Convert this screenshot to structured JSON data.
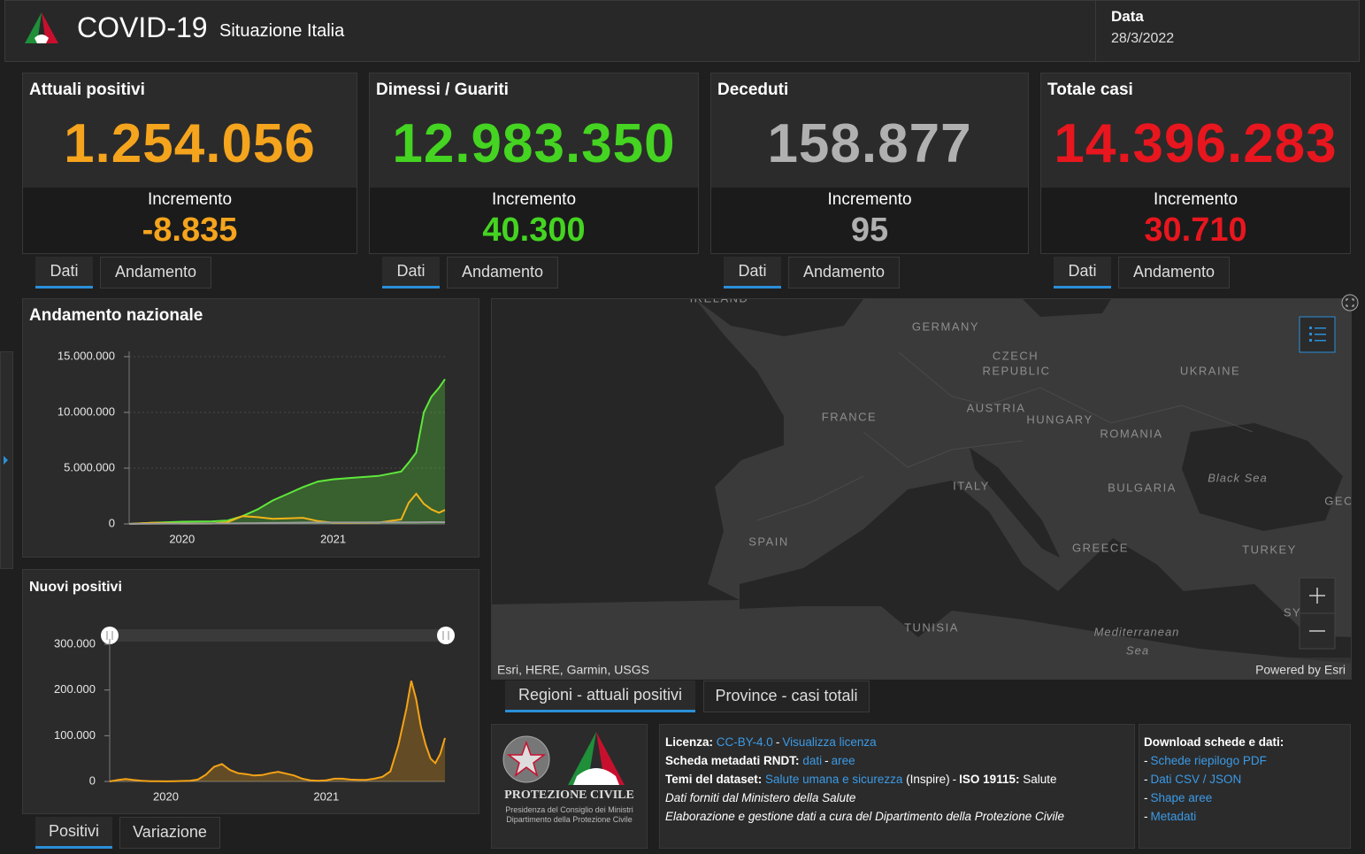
{
  "header": {
    "title": "COVID-19",
    "subtitle": "Situazione Italia",
    "date_label": "Data",
    "date": "28/3/2022"
  },
  "cards": [
    {
      "title": "Attuali positivi",
      "value": "1.254.056",
      "increment_label": "Incremento",
      "increment": "-8.835",
      "color": "#f5a41d",
      "tabs": [
        "Dati",
        "Andamento"
      ]
    },
    {
      "title": "Dimessi / Guariti",
      "value": "12.983.350",
      "increment_label": "Incremento",
      "increment": "40.300",
      "color": "#44d421",
      "tabs": [
        "Dati",
        "Andamento"
      ]
    },
    {
      "title": "Deceduti",
      "value": "158.877",
      "increment_label": "Incremento",
      "increment": "95",
      "color": "#b0b0b0",
      "tabs": [
        "Dati",
        "Andamento"
      ]
    },
    {
      "title": "Totale casi",
      "value": "14.396.283",
      "increment_label": "Incremento",
      "increment": "30.710",
      "color": "#e8161e",
      "tabs": [
        "Dati",
        "Andamento"
      ]
    }
  ],
  "chart_data": [
    {
      "type": "line",
      "title": "Andamento nazionale",
      "x": [
        2020.15,
        2020.3,
        2020.5,
        2020.7,
        2020.8,
        2020.9,
        2021.0,
        2021.1,
        2021.2,
        2021.3,
        2021.4,
        2021.5,
        2021.6,
        2021.8,
        2021.95,
        2022.0,
        2022.05,
        2022.1,
        2022.15,
        2022.2,
        2022.24
      ],
      "xlim": [
        2020.15,
        2022.24
      ],
      "xticks": [
        {
          "value": 2020.5,
          "label": "2020"
        },
        {
          "value": 2021.5,
          "label": "2021"
        }
      ],
      "ylim": [
        0,
        15000000
      ],
      "yticks": [
        0,
        {
          "value": 5000000,
          "label": "5.000.000"
        },
        {
          "value": 10000000,
          "label": "10.000.000"
        },
        {
          "value": 15000000,
          "label": "15.000.000"
        }
      ],
      "grid": true,
      "series": [
        {
          "name": "Dimessi / Guariti",
          "color": "#5ee83a",
          "area": true,
          "values": [
            0,
            100000,
            200000,
            230000,
            300000,
            700000,
            1300000,
            2100000,
            2700000,
            3300000,
            3800000,
            4000000,
            4100000,
            4300000,
            4700000,
            5500000,
            6400000,
            10000000,
            11400000,
            12200000,
            12983350
          ]
        },
        {
          "name": "Attuali positivi",
          "color": "#f0b419",
          "values": [
            0,
            100000,
            30000,
            30000,
            150000,
            700000,
            600000,
            450000,
            500000,
            550000,
            250000,
            100000,
            100000,
            120000,
            400000,
            1900000,
            2700000,
            1800000,
            1300000,
            1000000,
            1254056
          ]
        },
        {
          "name": "Deceduti",
          "color": "#9a9a9a",
          "values": [
            0,
            20000,
            35000,
            36000,
            40000,
            55000,
            75000,
            90000,
            105000,
            120000,
            127000,
            128000,
            130000,
            133000,
            137000,
            140000,
            143000,
            150000,
            155000,
            157000,
            158877
          ]
        }
      ]
    },
    {
      "type": "area",
      "title": "Nuovi positivi",
      "x": [
        2020.15,
        2020.2,
        2020.25,
        2020.3,
        2020.35,
        2020.4,
        2020.45,
        2020.5,
        2020.55,
        2020.6,
        2020.65,
        2020.7,
        2020.75,
        2020.8,
        2020.85,
        2020.9,
        2020.95,
        2021.0,
        2021.05,
        2021.1,
        2021.15,
        2021.2,
        2021.25,
        2021.3,
        2021.35,
        2021.4,
        2021.45,
        2021.5,
        2021.55,
        2021.6,
        2021.65,
        2021.7,
        2021.75,
        2021.8,
        2021.85,
        2021.9,
        2021.95,
        2022.0,
        2022.03,
        2022.06,
        2022.09,
        2022.12,
        2022.15,
        2022.18,
        2022.21,
        2022.24
      ],
      "xlim": [
        2020.15,
        2022.24
      ],
      "xticks": [
        {
          "value": 2020.5,
          "label": "2020"
        },
        {
          "value": 2021.5,
          "label": "2021"
        }
      ],
      "ylim": [
        0,
        300000
      ],
      "yticks": [
        0,
        {
          "value": 100000,
          "label": "100.000"
        },
        {
          "value": 200000,
          "label": "200.000"
        },
        {
          "value": 300000,
          "label": "300.000"
        }
      ],
      "grid": false,
      "series": [
        {
          "name": "Nuovi positivi",
          "color": "#f5a316",
          "values": [
            0,
            3000,
            5500,
            3000,
            1500,
            500,
            300,
            200,
            300,
            1000,
            1500,
            4000,
            15000,
            32000,
            38000,
            25000,
            18000,
            16000,
            13000,
            14000,
            18000,
            21000,
            17000,
            13000,
            6000,
            2500,
            1500,
            2500,
            6000,
            6000,
            4000,
            3500,
            3500,
            6000,
            10000,
            22000,
            80000,
            160000,
            220000,
            180000,
            120000,
            80000,
            50000,
            40000,
            60000,
            95000
          ]
        }
      ],
      "tabs": [
        "Positivi",
        "Variazione"
      ]
    }
  ],
  "map": {
    "labels": [
      "IRELAND",
      "GERMANY",
      "CZECH",
      "REPUBLIC",
      "UKRAINE",
      "FRANCE",
      "AUSTRIA",
      "HUNGARY",
      "ROMANIA",
      "ITALY",
      "BULGARIA",
      "Black Sea",
      "GEO",
      "SPAIN",
      "GREECE",
      "TURKEY",
      "TUNISIA",
      "Mediterranean",
      "Sea",
      "SY"
    ],
    "attribution": "Esri, HERE, Garmin, USGS",
    "powered": "Powered by Esri",
    "tabs": [
      "Regioni - attuali positivi",
      "Province - casi totali"
    ]
  },
  "logo": {
    "name": "PROTEZIONE CIVILE",
    "line1": "Presidenza del Consiglio dei Ministri",
    "line2": "Dipartimento della Protezione Civile"
  },
  "info": {
    "sep": "-",
    "license_label": "Licenza:",
    "license": "CC-BY-4.0",
    "license_link": "Visualizza licenza",
    "rndt_label": "Scheda metadati RNDT:",
    "rndt_data": "dati",
    "rndt_areas": "aree",
    "themes_label": "Temi del dataset:",
    "themes_link": "Salute umana e sicurezza",
    "inspire": "(Inspire)",
    "iso_label": "ISO 19115:",
    "iso_value": "Salute",
    "note1": "Dati forniti dal Ministero della Salute",
    "note2": "Elaborazione e gestione dati a cura del Dipartimento della Protezione Civile"
  },
  "download": {
    "title": "Download schede e dati:",
    "bullet": "-",
    "links": [
      "Schede riepilogo PDF",
      "Dati CSV / JSON",
      "Shape aree",
      "Metadati"
    ]
  }
}
